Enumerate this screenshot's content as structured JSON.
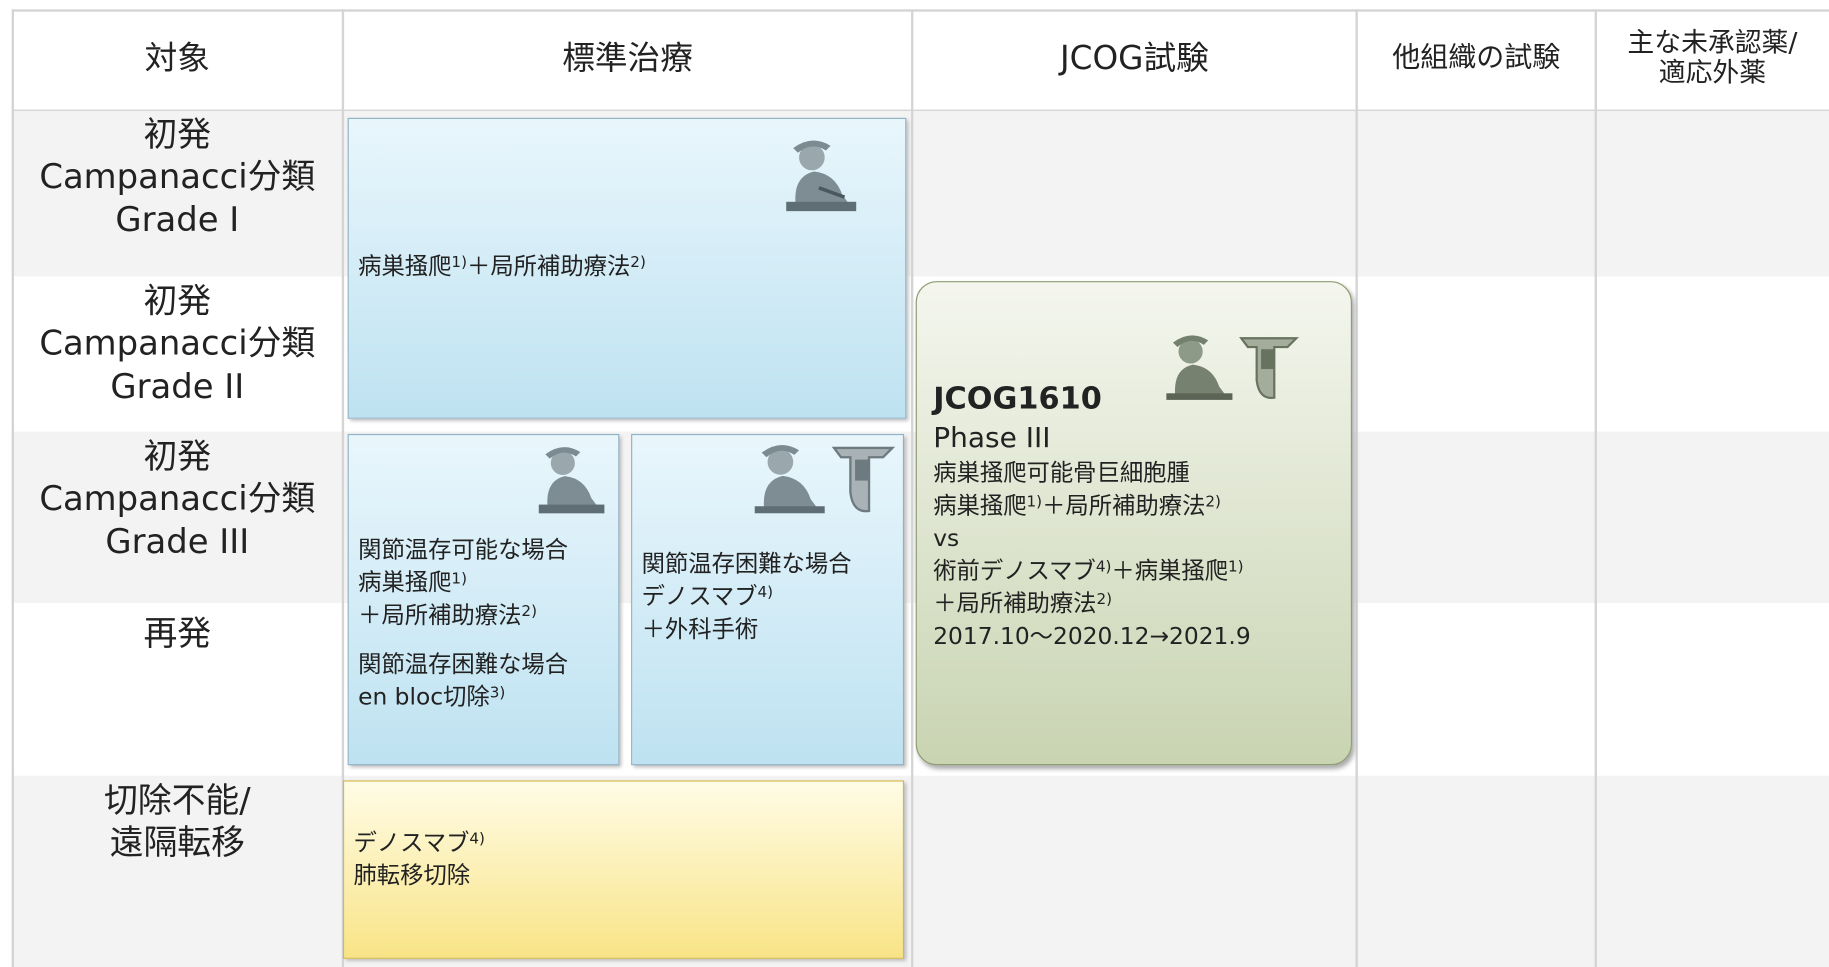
{
  "header": [
    [
      "対象"
    ],
    [
      "標準治療"
    ],
    [
      "JCOG試験"
    ],
    [
      "他組織の試験"
    ],
    [
      "主な未承認薬/",
      "適応外薬"
    ]
  ],
  "rows": [
    [
      "初発",
      "Campanacci分類",
      "Grade I"
    ],
    [
      "初発",
      "Campanacci分類",
      "Grade II"
    ],
    [
      "初発",
      "Campanacci分類",
      "Grade III"
    ],
    [
      "再発"
    ],
    [
      "切除不能/",
      "遠隔転移"
    ]
  ],
  "boxes": [
    {
      "paragraphs": [
        [
          [
            "病巣掻爬",
            {
              "sup": "1)"
            },
            "＋局所補助療法",
            {
              "sup": "2)"
            }
          ]
        ]
      ]
    },
    {
      "paragraphs": [
        [
          [
            "関節温存可能な場合"
          ],
          [
            "病巣掻爬",
            {
              "sup": "1)"
            }
          ],
          [
            "＋局所補助療法",
            {
              "sup": "2)"
            }
          ]
        ],
        [
          [
            "関節温存困難な場合"
          ],
          [
            "en bloc切除",
            {
              "sup": "3)"
            }
          ]
        ]
      ]
    },
    {
      "paragraphs": [
        [
          [
            "関節温存困難な場合"
          ],
          [
            "デノスマブ",
            {
              "sup": "4)"
            }
          ],
          [
            "＋外科手術"
          ]
        ]
      ]
    },
    {
      "title": "JCOG1610",
      "phase": "Phase III",
      "paragraphs": [
        [
          [
            "病巣掻爬可能骨巨細胞腫"
          ],
          [
            "病巣掻爬",
            {
              "sup": "1)"
            },
            "＋局所補助療法",
            {
              "sup": "2)"
            }
          ],
          [
            "vs"
          ],
          [
            "術前デノスマブ",
            {
              "sup": "4)"
            },
            "＋病巣掻爬",
            {
              "sup": "1)"
            }
          ],
          [
            "＋局所補助療法",
            {
              "sup": "2)"
            }
          ],
          [
            "2017.10～2020.12→2021.9"
          ]
        ]
      ]
    },
    {
      "paragraphs": [
        [
          [
            "デノスマブ",
            {
              "sup": "4)"
            }
          ],
          [
            "肺転移切除"
          ]
        ]
      ]
    }
  ]
}
